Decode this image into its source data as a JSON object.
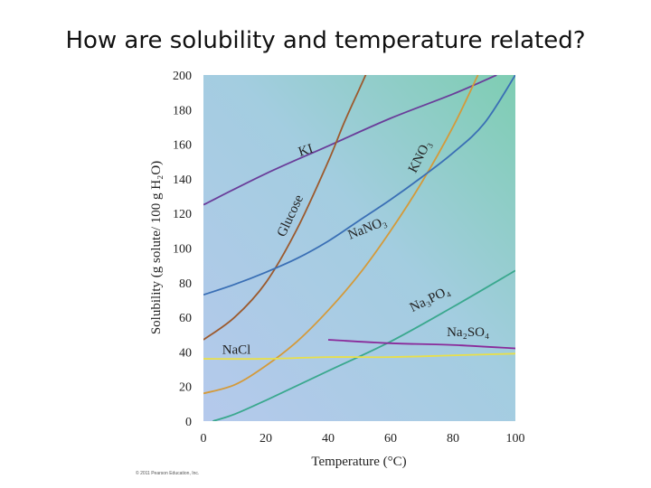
{
  "slide": {
    "title": "How are solubility and temperature related?"
  },
  "credit": "© 2011 Pearson Education, Inc.",
  "chart_data": {
    "type": "line",
    "title": "How are solubility and temperature related?",
    "xlabel": "Temperature (°C)",
    "ylabel": "Solubility (g solute/ 100 g H₂O)",
    "xlim": [
      0,
      100
    ],
    "ylim": [
      0,
      200
    ],
    "xticks": [
      0,
      20,
      40,
      60,
      80,
      100
    ],
    "yticks": [
      0,
      20,
      40,
      60,
      80,
      100,
      120,
      140,
      160,
      180,
      200
    ],
    "grid": false,
    "series": [
      {
        "name": "KI",
        "label": "KI",
        "color": "#6a3d9a",
        "x": [
          0,
          20,
          40,
          60,
          80,
          94
        ],
        "y": [
          125,
          143,
          159,
          175,
          189,
          200
        ]
      },
      {
        "name": "Glucose",
        "label": "Glucose",
        "color": "#9c5a2e",
        "x": [
          0,
          10,
          20,
          30,
          40,
          45,
          50,
          53
        ],
        "y": [
          47,
          60,
          80,
          111,
          150,
          172,
          192,
          204
        ]
      },
      {
        "name": "KNO3",
        "label": "KNO₃",
        "color": "#d49a3a",
        "x": [
          0,
          10,
          20,
          30,
          40,
          50,
          60,
          70,
          80,
          88
        ],
        "y": [
          16,
          21,
          32,
          46,
          64,
          85,
          110,
          138,
          170,
          200
        ]
      },
      {
        "name": "NaNO3",
        "label": "NaNO₃",
        "color": "#3a6fb5",
        "x": [
          0,
          10,
          20,
          30,
          40,
          50,
          60,
          70,
          80,
          90,
          100
        ],
        "y": [
          73,
          79,
          86,
          94,
          104,
          116,
          128,
          141,
          155,
          172,
          200
        ]
      },
      {
        "name": "Na3PO4",
        "label": "Na₃PO₄",
        "color": "#3aa88e",
        "x": [
          3,
          10,
          20,
          40,
          60,
          80,
          100
        ],
        "y": [
          0,
          4,
          12,
          29,
          46,
          66,
          87
        ]
      },
      {
        "name": "Na2SO4",
        "label": "Na₂SO₄",
        "color": "#8a2a9a",
        "x": [
          40,
          60,
          80,
          100
        ],
        "y": [
          47,
          45,
          44,
          42
        ]
      },
      {
        "name": "NaCl",
        "label": "NaCl",
        "color": "#e8df4a",
        "x": [
          0,
          20,
          40,
          60,
          80,
          100
        ],
        "y": [
          36,
          36,
          37,
          37,
          38,
          39
        ]
      }
    ]
  }
}
